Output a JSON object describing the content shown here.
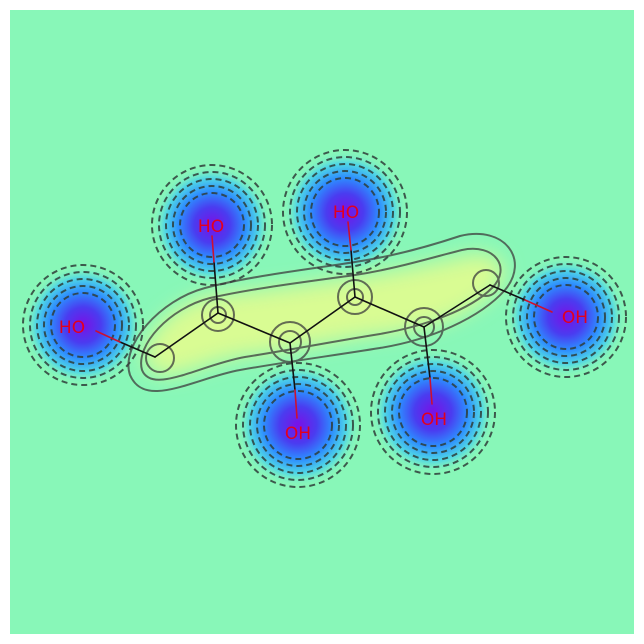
{
  "molecule": {
    "atom_labels": [
      {
        "id": "o-left",
        "text": "HO"
      },
      {
        "id": "o-top-1",
        "text": "HO"
      },
      {
        "id": "o-top-2",
        "text": "HO"
      },
      {
        "id": "o-right",
        "text": "OH"
      },
      {
        "id": "o-bottom-1",
        "text": "OH"
      },
      {
        "id": "o-bottom-2",
        "text": "OH"
      }
    ]
  },
  "colors": {
    "background": "#88f7b8",
    "positive_lobe": "#f0ff80",
    "negative_core": "#7a18e0",
    "negative_ring": "#1ea7ff",
    "bond": "#111111",
    "heteroatom_bond": "#cc1030",
    "label": "#e3001b",
    "contour": "#333333"
  }
}
